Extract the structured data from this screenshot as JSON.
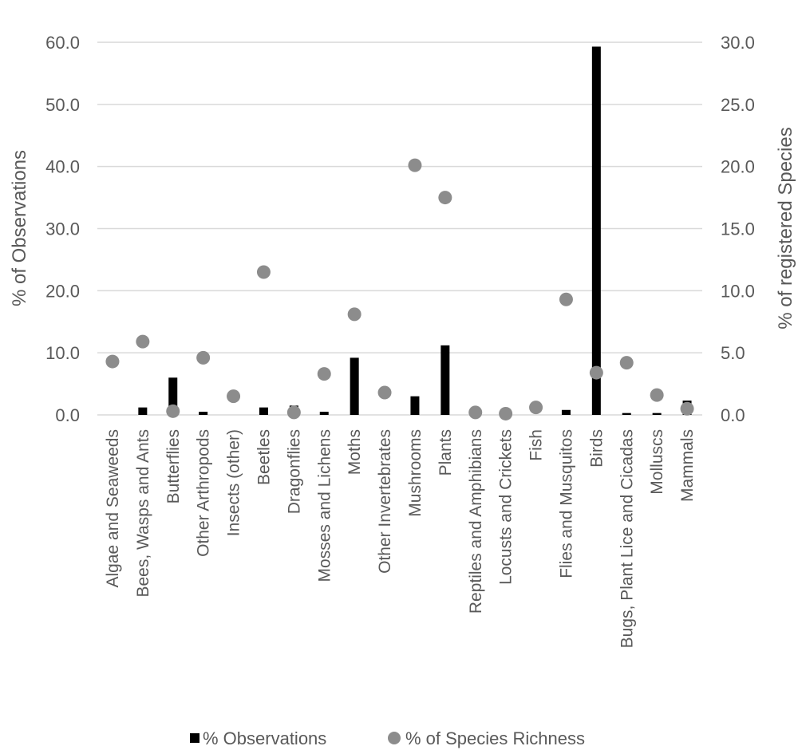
{
  "chart_data": {
    "type": "bar",
    "title": "",
    "categories": [
      "Algae and Seaweeds",
      "Bees, Wasps and Ants",
      "Butterflies",
      "Other Arthropods",
      "Insects (other)",
      "Beetles",
      "Dragonflies",
      "Mosses and Lichens",
      "Moths",
      "Other Invertebrates",
      "Mushrooms",
      "Plants",
      "Reptiles and Amphibians",
      "Locusts and Crickets",
      "Fish",
      "Flies and Musquitos",
      "Birds",
      "Bugs, Plant Lice and Cicadas",
      "Molluscs",
      "Mammals"
    ],
    "series": [
      {
        "name": "% Observations",
        "type": "bar",
        "axis": "left",
        "color": "#000000",
        "values": [
          0.0,
          1.2,
          6.0,
          0.5,
          0.0,
          1.2,
          1.5,
          0.5,
          9.2,
          0.0,
          3.0,
          11.2,
          0.0,
          0.0,
          0.0,
          0.8,
          59.3,
          0.3,
          0.3,
          2.3
        ]
      },
      {
        "name": "% of Species Richness",
        "type": "scatter",
        "axis": "right",
        "color": "#8c8c8c",
        "values": [
          4.3,
          5.9,
          0.3,
          4.6,
          1.5,
          11.5,
          0.2,
          3.3,
          8.1,
          1.8,
          20.1,
          17.5,
          0.2,
          0.1,
          0.6,
          9.3,
          3.4,
          4.2,
          1.6,
          0.5
        ]
      }
    ],
    "y_left": {
      "label": "% of Observations",
      "ylim": [
        0,
        60
      ],
      "ticks": [
        "0.0",
        "10.0",
        "20.0",
        "30.0",
        "40.0",
        "50.0",
        "60.0"
      ]
    },
    "y_right": {
      "label": "% of registered Species",
      "ylim": [
        0,
        30
      ],
      "ticks": [
        "0.0",
        "5.0",
        "10.0",
        "15.0",
        "20.0",
        "25.0",
        "30.0"
      ]
    },
    "grid": true,
    "legend": "bottom",
    "gridColor": "#d9d9d9"
  }
}
